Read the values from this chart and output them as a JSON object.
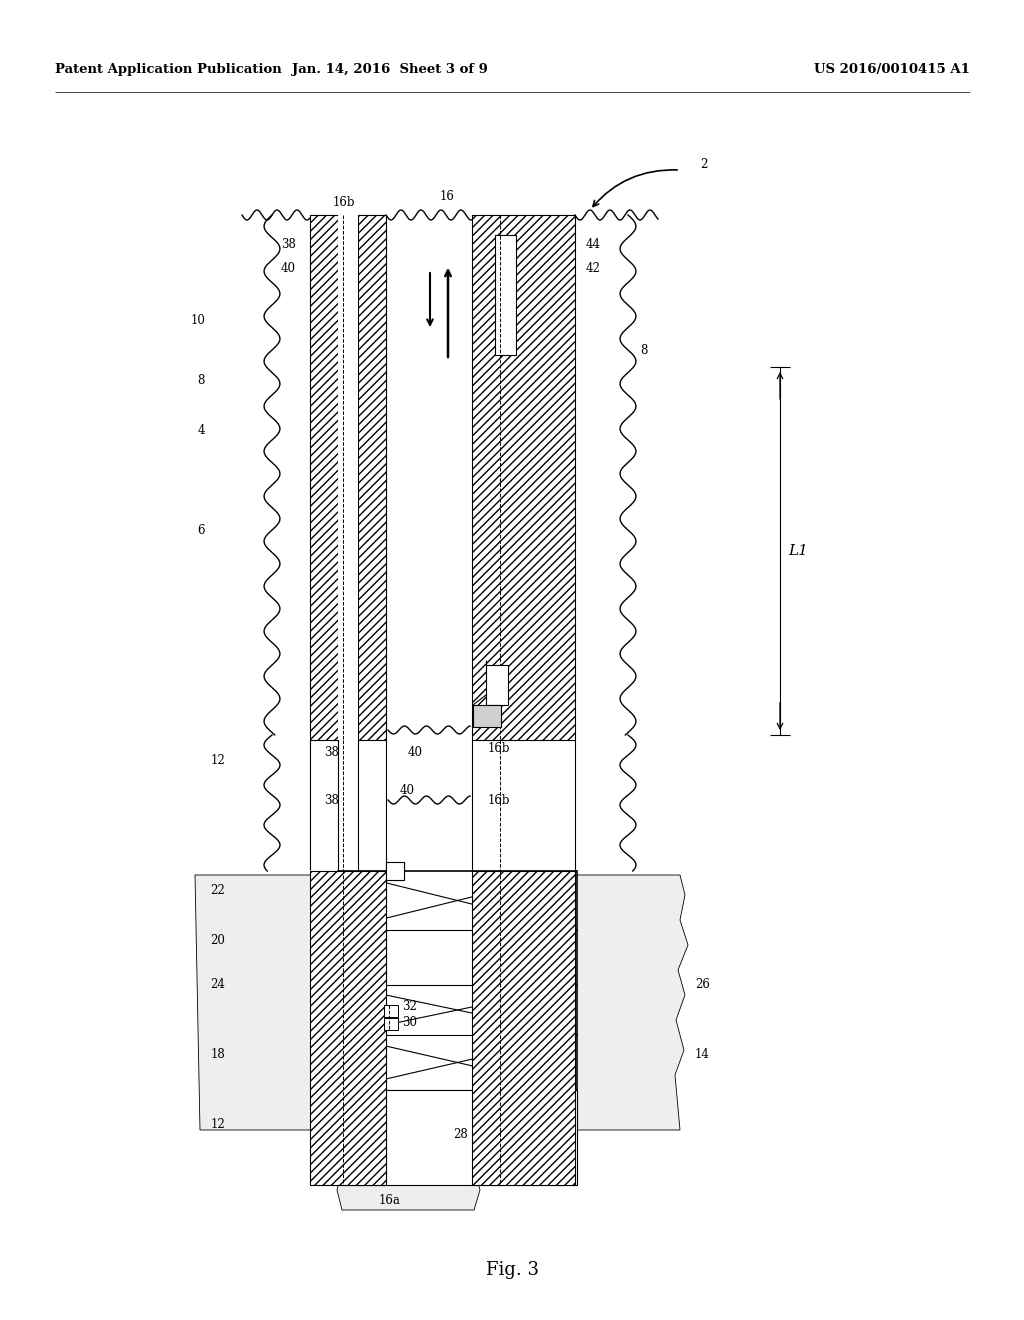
{
  "title_left": "Patent Application Publication",
  "title_center": "Jan. 14, 2016  Sheet 3 of 9",
  "title_right": "US 2016/0010415 A1",
  "fig_label": "Fig. 3",
  "bg_color": "#ffffff",
  "line_color": "#000000"
}
